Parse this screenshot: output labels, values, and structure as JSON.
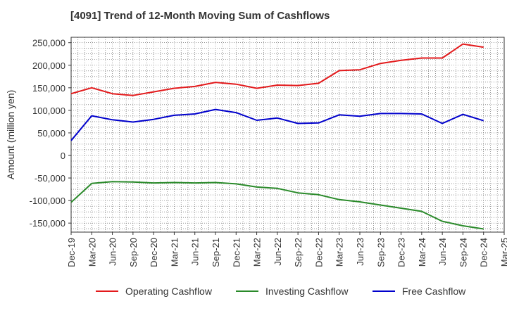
{
  "chart_data": {
    "type": "line",
    "title": "[4091]  Trend of 12-Month Moving Sum of Cashflows",
    "ylabel": "Amount (million yen)",
    "xlabel": "",
    "ylim": [
      -170000,
      262000
    ],
    "yticks": [
      250000,
      200000,
      150000,
      100000,
      50000,
      0,
      -50000,
      -100000,
      -150000
    ],
    "ytick_labels": [
      "250,000",
      "200,000",
      "150,000",
      "100,000",
      "50,000",
      "0",
      "-50,000",
      "-100,000",
      "-150,000"
    ],
    "xticks": [
      "Dec-19",
      "Mar-20",
      "Jun-20",
      "Sep-20",
      "Dec-20",
      "Mar-21",
      "Jun-21",
      "Sep-21",
      "Dec-21",
      "Mar-22",
      "Jun-22",
      "Sep-22",
      "Dec-22",
      "Mar-23",
      "Jun-23",
      "Sep-23",
      "Dec-23",
      "Mar-24",
      "Jun-24",
      "Sep-24",
      "Dec-24",
      "Mar-25"
    ],
    "grid": true,
    "legend_position": "bottom",
    "series": [
      {
        "name": "Operating Cashflow",
        "color": "#e31a1c",
        "values": [
          137000,
          150000,
          137000,
          133000,
          141000,
          149000,
          153000,
          162000,
          158000,
          149000,
          156000,
          155000,
          160000,
          188000,
          190000,
          204000,
          211000,
          216000,
          216000,
          247000,
          240000
        ]
      },
      {
        "name": "Investing Cashflow",
        "color": "#2a8a2a",
        "values": [
          -104000,
          -62000,
          -58000,
          -59000,
          -61000,
          -60000,
          -61000,
          -60000,
          -63000,
          -70000,
          -73000,
          -83000,
          -87000,
          -98000,
          -103000,
          -110000,
          -117000,
          -124000,
          -146000,
          -156000,
          -163000
        ]
      },
      {
        "name": "Free Cashflow",
        "color": "#0000cc",
        "values": [
          33000,
          88000,
          79000,
          74000,
          80000,
          89000,
          92000,
          102000,
          95000,
          78000,
          83000,
          71000,
          72000,
          90000,
          87000,
          93000,
          93000,
          92000,
          71000,
          91000,
          77000
        ]
      }
    ]
  }
}
